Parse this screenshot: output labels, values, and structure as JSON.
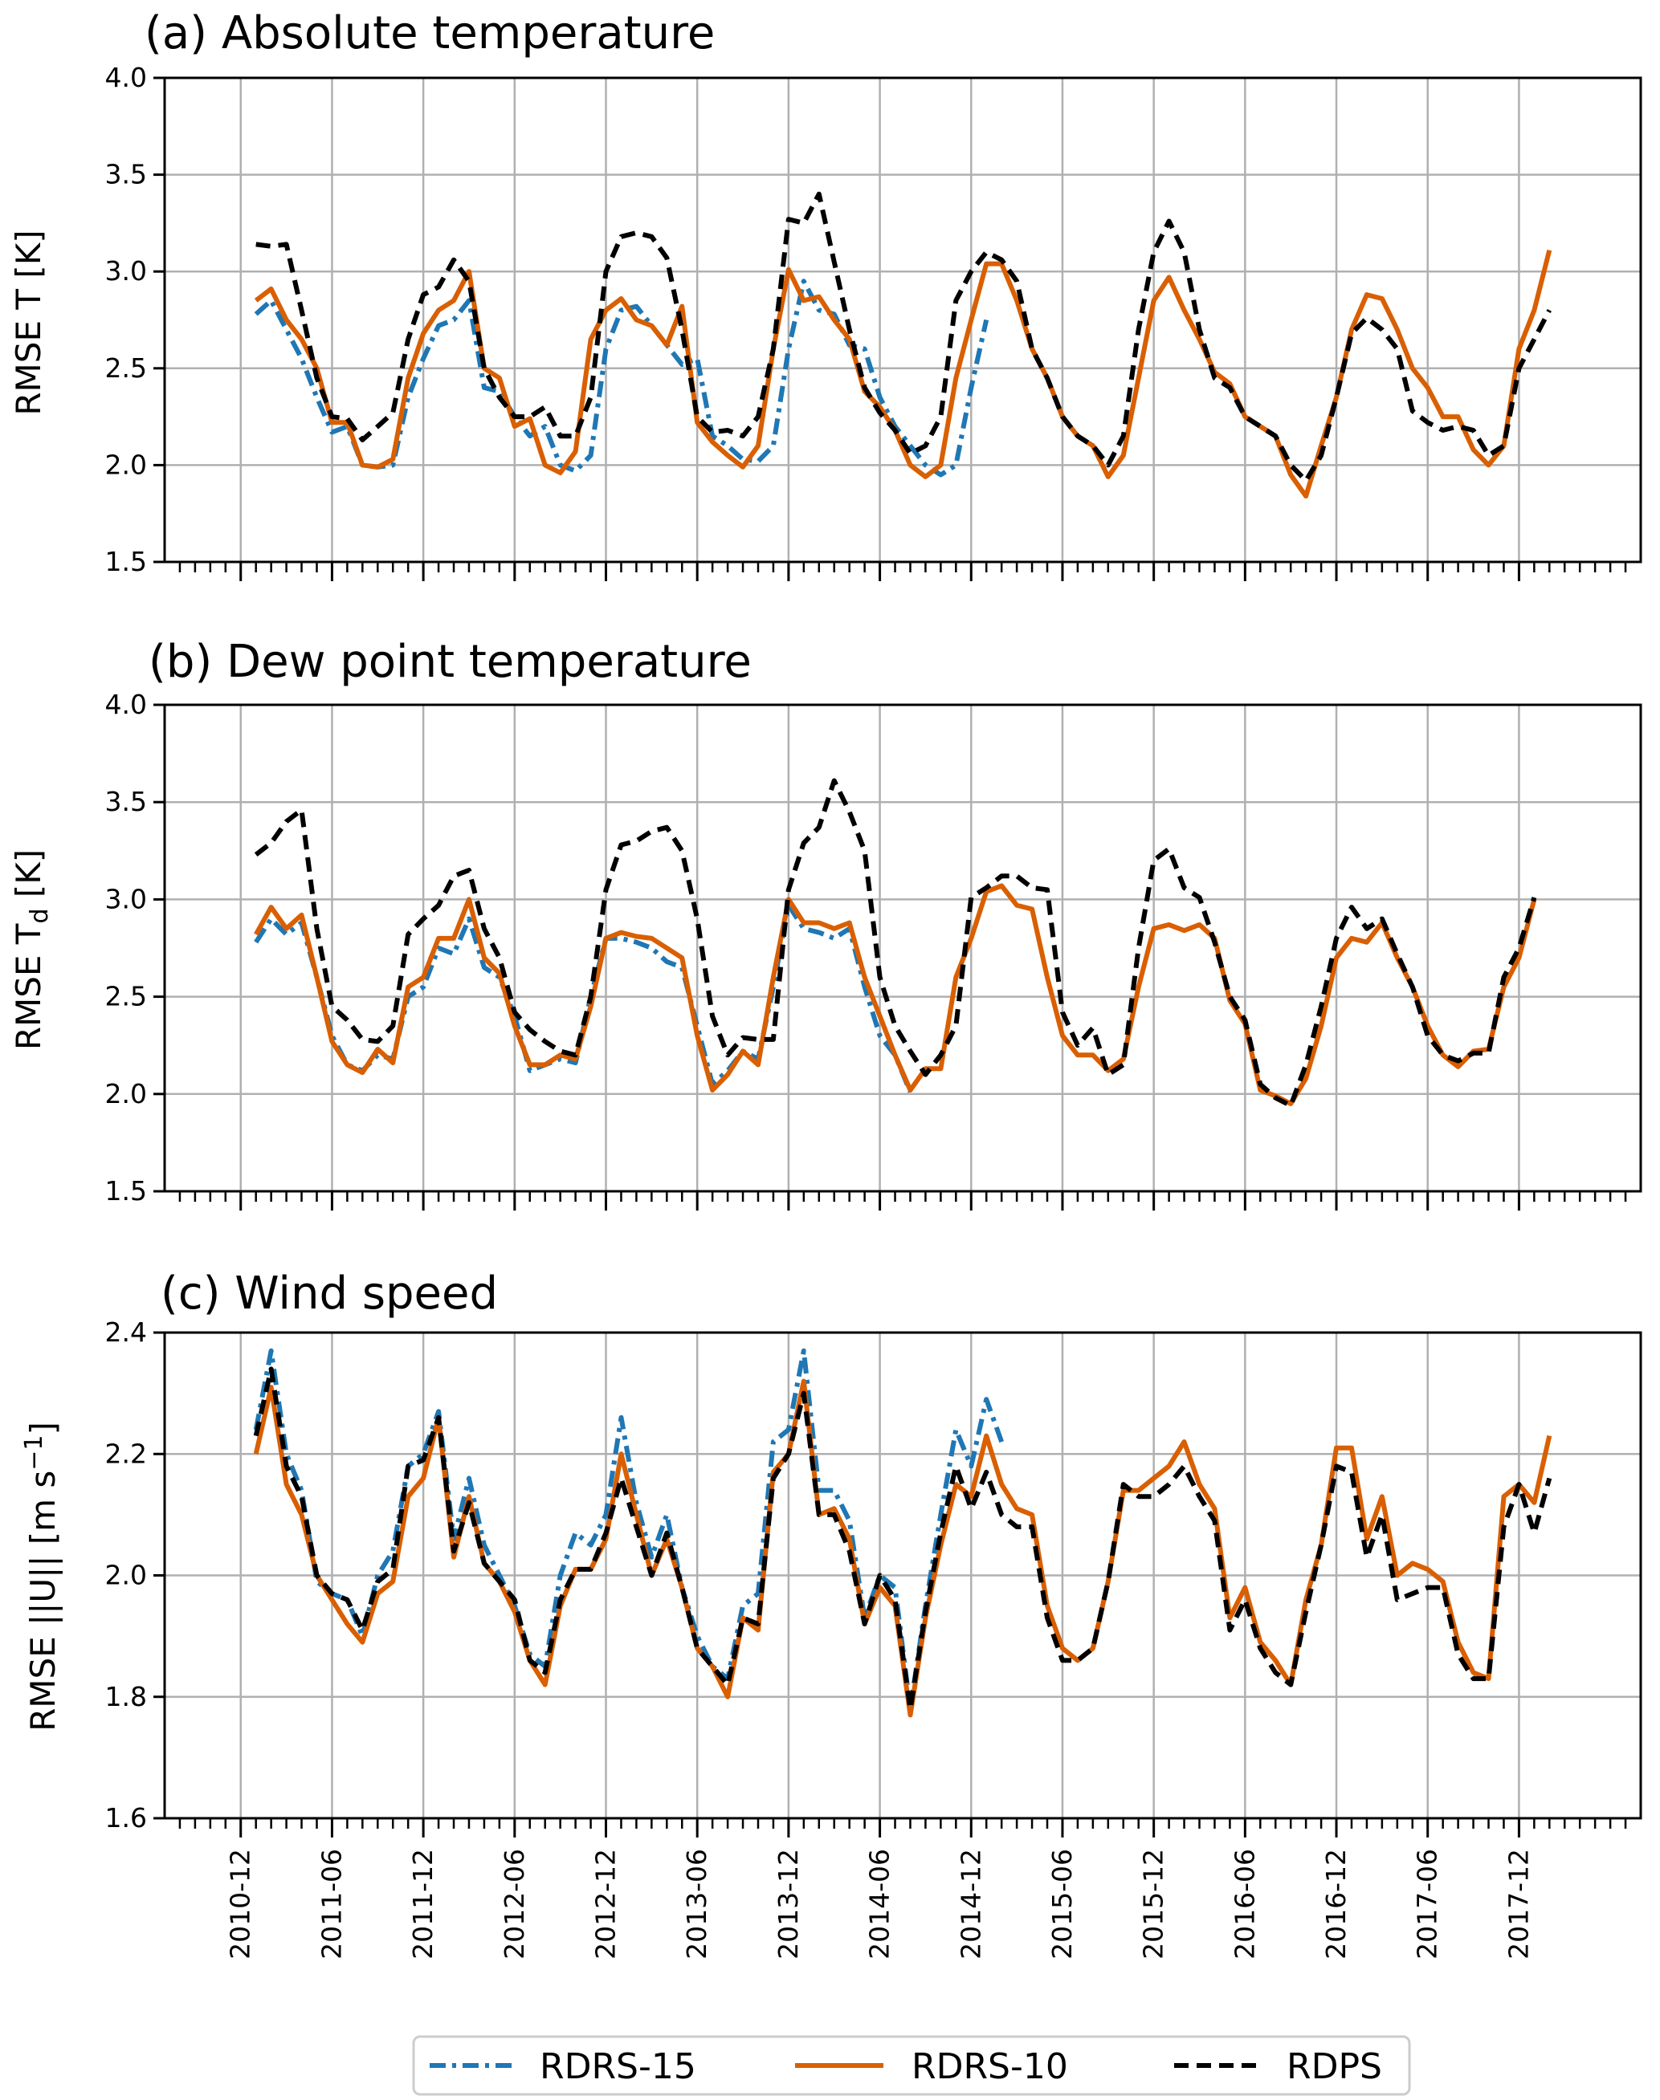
{
  "legend": {
    "items": [
      {
        "label": "RDRS-15",
        "color": "#1f77b4",
        "style": "dash-dot"
      },
      {
        "label": "RDRS-10",
        "color": "#d95f02",
        "style": "solid"
      },
      {
        "label": "RDPS",
        "color": "#000000",
        "style": "dashed"
      }
    ]
  },
  "chart_data": [
    {
      "type": "line",
      "title": "(a) Absolute temperature",
      "ylabel": "RMSE T [K]",
      "ylim": [
        1.5,
        4.0
      ],
      "yticks": [
        "1.5",
        "2.0",
        "2.5",
        "3.0",
        "3.5",
        "4.0"
      ],
      "xlim": [
        "2010-07",
        "2018-08"
      ],
      "xticks": [
        "2010-12",
        "2011-06",
        "2011-12",
        "2012-06",
        "2012-12",
        "2013-06",
        "2013-12",
        "2014-06",
        "2014-12",
        "2015-06",
        "2015-12",
        "2016-06",
        "2016-12",
        "2017-06",
        "2017-12"
      ],
      "grid": true,
      "series": [
        {
          "name": "RDRS-15",
          "start": "2011-01",
          "values": [
            2.78,
            2.85,
            2.7,
            2.55,
            2.35,
            2.17,
            2.2,
            2.0,
            1.99,
            2.0,
            2.35,
            2.55,
            2.72,
            2.75,
            2.85,
            2.4,
            2.38,
            2.25,
            2.15,
            2.2,
            2.0,
            1.97,
            2.05,
            2.6,
            2.8,
            2.82,
            2.72,
            2.62,
            2.52,
            2.55,
            2.15,
            2.1,
            2.03,
            2.02,
            2.1,
            2.6,
            2.95,
            2.8,
            2.78,
            2.62,
            2.6,
            2.35,
            2.2,
            2.1,
            2.0,
            1.95,
            2.0,
            2.4,
            2.75
          ]
        },
        {
          "name": "RDRS-10",
          "start": "2011-01",
          "values": [
            2.85,
            2.91,
            2.75,
            2.65,
            2.5,
            2.22,
            2.22,
            2.0,
            1.99,
            2.03,
            2.45,
            2.68,
            2.8,
            2.85,
            3.0,
            2.5,
            2.45,
            2.2,
            2.24,
            2.0,
            1.96,
            2.07,
            2.65,
            2.8,
            2.86,
            2.75,
            2.72,
            2.62,
            2.82,
            2.22,
            2.12,
            2.05,
            1.99,
            2.1,
            2.6,
            3.01,
            2.85,
            2.87,
            2.75,
            2.65,
            2.38,
            2.3,
            2.18,
            2.0,
            1.94,
            2.0,
            2.45,
            2.75,
            3.04,
            3.04,
            2.85,
            2.6,
            2.45,
            2.25,
            2.15,
            2.1,
            1.94,
            2.05,
            2.45,
            2.85,
            2.97,
            2.8,
            2.65,
            2.48,
            2.42,
            2.25,
            2.2,
            2.15,
            1.95,
            1.84,
            2.1,
            2.35,
            2.7,
            2.88,
            2.86,
            2.7,
            2.5,
            2.4,
            2.25,
            2.25,
            2.08,
            2.0,
            2.1,
            2.6,
            2.8,
            3.11
          ]
        },
        {
          "name": "RDPS",
          "start": "2011-01",
          "values": [
            3.14,
            3.13,
            3.14,
            2.8,
            2.45,
            2.25,
            2.24,
            2.13,
            2.2,
            2.27,
            2.65,
            2.88,
            2.92,
            3.06,
            2.95,
            2.5,
            2.35,
            2.25,
            2.25,
            2.3,
            2.15,
            2.15,
            2.35,
            3.0,
            3.18,
            3.2,
            3.18,
            3.07,
            2.7,
            2.25,
            2.17,
            2.18,
            2.15,
            2.25,
            2.6,
            3.27,
            3.25,
            3.4,
            3.05,
            2.7,
            2.4,
            2.27,
            2.18,
            2.06,
            2.1,
            2.25,
            2.85,
            3.0,
            3.1,
            3.06,
            2.95,
            2.6,
            2.45,
            2.25,
            2.15,
            2.1,
            2.0,
            2.15,
            2.7,
            3.1,
            3.26,
            3.1,
            2.7,
            2.45,
            2.4,
            2.25,
            2.2,
            2.15,
            2.0,
            1.92,
            2.05,
            2.35,
            2.68,
            2.76,
            2.7,
            2.6,
            2.28,
            2.22,
            2.18,
            2.2,
            2.18,
            2.05,
            2.1,
            2.5,
            2.65,
            2.8
          ]
        }
      ]
    },
    {
      "type": "line",
      "title": "(b) Dew point temperature",
      "ylabel": "RMSE T",
      "ylabel_sub": "d",
      "ylabel_unit": " [K]",
      "ylim": [
        1.5,
        4.0
      ],
      "yticks": [
        "1.5",
        "2.0",
        "2.5",
        "3.0",
        "3.5",
        "4.0"
      ],
      "xlim": [
        "2010-07",
        "2018-08"
      ],
      "xticks": [
        "2010-12",
        "2011-06",
        "2011-12",
        "2012-06",
        "2012-12",
        "2013-06",
        "2013-12",
        "2014-06",
        "2014-12",
        "2015-06",
        "2015-12",
        "2016-06",
        "2016-12",
        "2017-06",
        "2017-12"
      ],
      "grid": true,
      "series": [
        {
          "name": "RDRS-15",
          "start": "2011-01",
          "values": [
            2.78,
            2.9,
            2.82,
            2.88,
            2.6,
            2.3,
            2.15,
            2.12,
            2.2,
            2.18,
            2.5,
            2.55,
            2.75,
            2.72,
            2.9,
            2.65,
            2.6,
            2.4,
            2.12,
            2.15,
            2.18,
            2.16,
            2.5,
            2.8,
            2.8,
            2.78,
            2.75,
            2.68,
            2.65,
            2.35,
            2.05,
            2.12,
            2.22,
            2.18,
            2.55,
            2.97,
            2.85,
            2.83,
            2.8,
            2.85,
            2.55,
            2.3,
            2.2,
            2.01
          ]
        },
        {
          "name": "RDRS-10",
          "start": "2011-01",
          "values": [
            2.82,
            2.96,
            2.85,
            2.92,
            2.6,
            2.27,
            2.15,
            2.11,
            2.23,
            2.16,
            2.55,
            2.6,
            2.8,
            2.8,
            3.0,
            2.7,
            2.62,
            2.35,
            2.15,
            2.15,
            2.2,
            2.18,
            2.45,
            2.8,
            2.83,
            2.81,
            2.8,
            2.75,
            2.7,
            2.3,
            2.02,
            2.1,
            2.22,
            2.15,
            2.6,
            3.0,
            2.88,
            2.88,
            2.85,
            2.88,
            2.6,
            2.4,
            2.2,
            2.02,
            2.13,
            2.13,
            2.6,
            2.8,
            3.04,
            3.07,
            2.97,
            2.95,
            2.6,
            2.3,
            2.2,
            2.2,
            2.12,
            2.18,
            2.55,
            2.85,
            2.87,
            2.84,
            2.87,
            2.8,
            2.48,
            2.36,
            2.02,
            1.99,
            1.95,
            2.08,
            2.35,
            2.7,
            2.8,
            2.78,
            2.88,
            2.7,
            2.55,
            2.35,
            2.2,
            2.14,
            2.22,
            2.23,
            2.55,
            2.7,
            3.0
          ]
        },
        {
          "name": "RDPS",
          "start": "2011-01",
          "values": [
            3.23,
            3.29,
            3.4,
            3.46,
            2.85,
            2.45,
            2.38,
            2.28,
            2.27,
            2.35,
            2.82,
            2.9,
            2.97,
            3.12,
            3.15,
            2.85,
            2.7,
            2.42,
            2.33,
            2.27,
            2.22,
            2.2,
            2.5,
            3.05,
            3.28,
            3.3,
            3.35,
            3.37,
            3.25,
            2.9,
            2.4,
            2.2,
            2.29,
            2.28,
            2.28,
            3.05,
            3.29,
            3.37,
            3.61,
            3.45,
            3.25,
            2.6,
            2.35,
            2.22,
            2.1,
            2.2,
            2.35,
            3.01,
            3.06,
            3.12,
            3.12,
            3.06,
            3.05,
            2.42,
            2.25,
            2.34,
            2.1,
            2.15,
            2.75,
            3.2,
            3.26,
            3.06,
            3.01,
            2.78,
            2.5,
            2.38,
            2.05,
            1.98,
            1.94,
            2.15,
            2.45,
            2.8,
            2.96,
            2.85,
            2.9,
            2.72,
            2.55,
            2.3,
            2.2,
            2.17,
            2.21,
            2.21,
            2.6,
            2.75,
            3.01
          ]
        }
      ]
    },
    {
      "type": "line",
      "title": "(c) Wind speed",
      "ylabel": "RMSE ||U|| [m s",
      "ylabel_sup": "−1",
      "ylabel_end": "]",
      "ylim": [
        1.6,
        2.4
      ],
      "yticks": [
        "1.6",
        "1.8",
        "2.0",
        "2.2",
        "2.4"
      ],
      "xlim": [
        "2010-07",
        "2018-08"
      ],
      "xticks": [
        "2010-12",
        "2011-06",
        "2011-12",
        "2012-06",
        "2012-12",
        "2013-06",
        "2013-12",
        "2014-06",
        "2014-12",
        "2015-06",
        "2015-12",
        "2016-06",
        "2016-12",
        "2017-06",
        "2017-12"
      ],
      "grid": true,
      "series": [
        {
          "name": "RDRS-15",
          "start": "2011-01",
          "values": [
            2.24,
            2.37,
            2.2,
            2.14,
            1.99,
            1.97,
            1.96,
            1.9,
            2.0,
            2.04,
            2.18,
            2.2,
            2.27,
            2.06,
            2.16,
            2.05,
            2.0,
            1.95,
            1.87,
            1.85,
            2.0,
            2.07,
            2.05,
            2.1,
            2.26,
            2.12,
            2.03,
            2.1,
            1.98,
            1.9,
            1.85,
            1.83,
            1.95,
            1.97,
            2.22,
            2.24,
            2.37,
            2.14,
            2.14,
            2.09,
            1.93,
            2.0,
            1.98,
            1.78,
            1.95,
            2.1,
            2.24,
            2.18,
            2.29,
            2.22
          ]
        },
        {
          "name": "RDRS-10",
          "start": "2011-01",
          "values": [
            2.2,
            2.31,
            2.15,
            2.1,
            2.0,
            1.96,
            1.92,
            1.89,
            1.97,
            1.99,
            2.13,
            2.16,
            2.26,
            2.03,
            2.13,
            2.02,
            1.99,
            1.94,
            1.86,
            1.82,
            1.95,
            2.01,
            2.01,
            2.06,
            2.2,
            2.1,
            2.0,
            2.06,
            1.98,
            1.88,
            1.85,
            1.8,
            1.93,
            1.91,
            2.17,
            2.2,
            2.32,
            2.1,
            2.11,
            2.06,
            1.92,
            1.98,
            1.95,
            1.77,
            1.93,
            2.05,
            2.15,
            2.13,
            2.23,
            2.15,
            2.11,
            2.1,
            1.95,
            1.88,
            1.86,
            1.88,
            1.99,
            2.14,
            2.14,
            2.16,
            2.18,
            2.22,
            2.15,
            2.11,
            1.93,
            1.98,
            1.89,
            1.86,
            1.82,
            1.96,
            2.05,
            2.21,
            2.21,
            2.06,
            2.13,
            2.0,
            2.02,
            2.01,
            1.99,
            1.89,
            1.84,
            1.83,
            2.13,
            2.15,
            2.12,
            2.23
          ]
        },
        {
          "name": "RDPS",
          "start": "2011-01",
          "values": [
            2.23,
            2.34,
            2.18,
            2.13,
            2.0,
            1.97,
            1.96,
            1.91,
            1.99,
            2.01,
            2.18,
            2.19,
            2.26,
            2.04,
            2.12,
            2.02,
            1.99,
            1.96,
            1.86,
            1.84,
            1.96,
            2.01,
            2.01,
            2.07,
            2.16,
            2.08,
            2.0,
            2.07,
            1.98,
            1.88,
            1.85,
            1.82,
            1.93,
            1.92,
            2.16,
            2.2,
            2.3,
            2.1,
            2.1,
            2.04,
            1.92,
            2.0,
            1.96,
            1.78,
            1.94,
            2.07,
            2.18,
            2.11,
            2.17,
            2.1,
            2.08,
            2.08,
            1.93,
            1.86,
            1.86,
            1.88,
            1.99,
            2.15,
            2.13,
            2.13,
            2.15,
            2.18,
            2.13,
            2.09,
            1.91,
            1.96,
            1.88,
            1.84,
            1.82,
            1.94,
            2.05,
            2.18,
            2.17,
            2.03,
            2.1,
            1.96,
            1.97,
            1.98,
            1.98,
            1.87,
            1.83,
            1.83,
            2.08,
            2.15,
            2.07,
            2.16
          ]
        }
      ]
    }
  ]
}
